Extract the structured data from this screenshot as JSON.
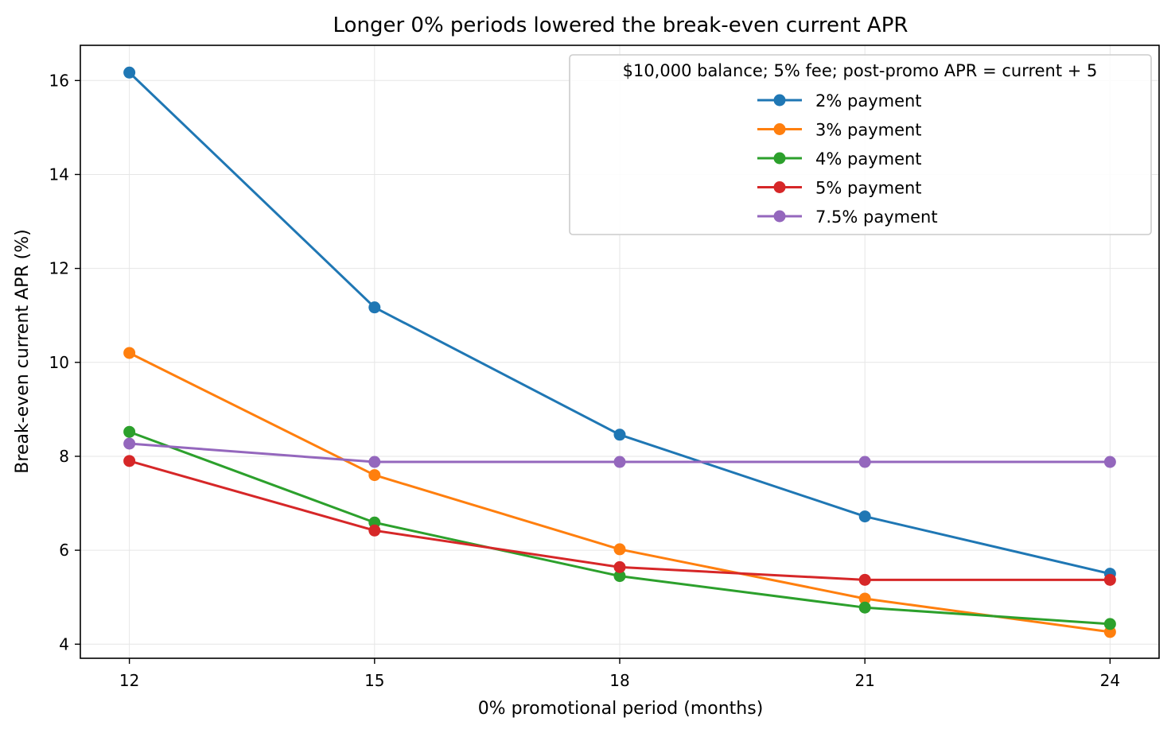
{
  "chart_data": {
    "type": "line",
    "title": "Longer 0% periods lowered the break-even current APR",
    "xlabel": "0% promotional period (months)",
    "ylabel": "Break-even current APR (%)",
    "x": [
      12,
      15,
      18,
      21,
      24
    ],
    "xticks": [
      "12",
      "15",
      "18",
      "21",
      "24"
    ],
    "yticks": [
      "4",
      "6",
      "8",
      "10",
      "12",
      "14",
      "16"
    ],
    "xlim": [
      11.4,
      24.6
    ],
    "ylim": [
      3.7,
      16.75
    ],
    "grid": true,
    "legend": {
      "title": "$10,000 balance; 5% fee; post-promo APR = current + 5",
      "placement": "top-right"
    },
    "series": [
      {
        "name": "2% payment",
        "color": "#1f77b4",
        "values": [
          16.17,
          11.17,
          8.46,
          6.72,
          5.5
        ]
      },
      {
        "name": "3% payment",
        "color": "#ff7f0e",
        "values": [
          10.2,
          7.6,
          6.02,
          4.97,
          4.26
        ]
      },
      {
        "name": "4% payment",
        "color": "#2ca02c",
        "values": [
          8.52,
          6.59,
          5.45,
          4.78,
          4.43
        ]
      },
      {
        "name": "5% payment",
        "color": "#d62728",
        "values": [
          7.9,
          6.42,
          5.64,
          5.37,
          5.37
        ]
      },
      {
        "name": "7.5% payment",
        "color": "#9467bd",
        "values": [
          8.27,
          7.88,
          7.88,
          7.88,
          7.88
        ]
      }
    ]
  }
}
